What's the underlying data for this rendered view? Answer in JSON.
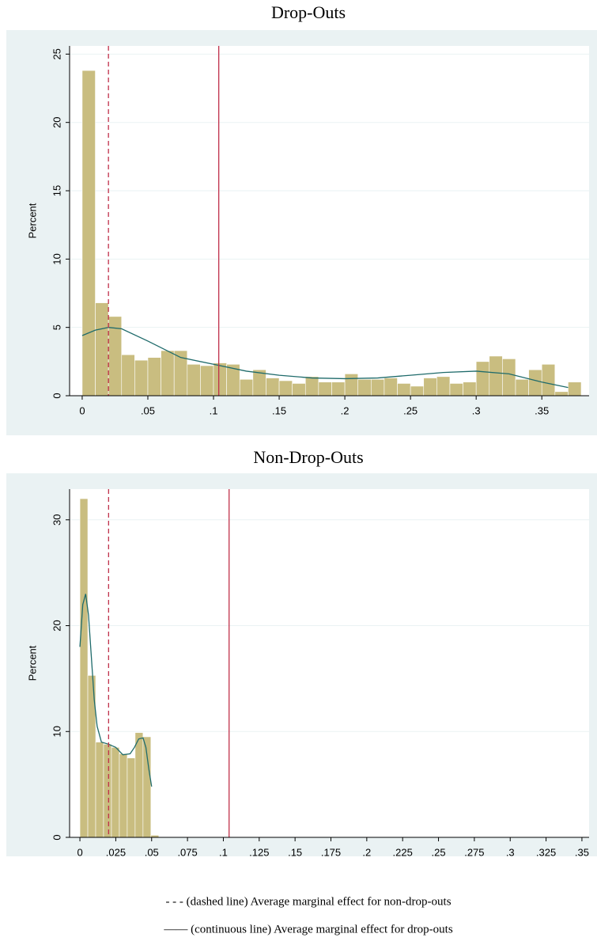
{
  "chart_data": [
    {
      "type": "histogram",
      "title": "Drop-Outs",
      "y_label": "Percent",
      "color": "#c9bd80",
      "grid": true,
      "bins": [
        0,
        0.01,
        0.02,
        0.03,
        0.04,
        0.05,
        0.06,
        0.07,
        0.08,
        0.09,
        0.1,
        0.11,
        0.12,
        0.13,
        0.14,
        0.15,
        0.16,
        0.17,
        0.18,
        0.19,
        0.2,
        0.21,
        0.22,
        0.23,
        0.24,
        0.25,
        0.26,
        0.27,
        0.28,
        0.29,
        0.3,
        0.31,
        0.32,
        0.33,
        0.34,
        0.35,
        0.36,
        0.37,
        0.38
      ],
      "values": [
        23.8,
        6.8,
        5.8,
        3.0,
        2.6,
        2.8,
        3.3,
        3.3,
        2.3,
        2.2,
        2.4,
        2.3,
        1.2,
        1.9,
        1.3,
        1.1,
        0.9,
        1.4,
        1.0,
        1.0,
        1.6,
        1.2,
        1.2,
        1.3,
        0.9,
        0.7,
        1.3,
        1.4,
        0.9,
        1.0,
        2.5,
        2.9,
        2.7,
        1.2,
        1.9,
        2.3,
        0.3,
        1.0
      ],
      "density": {
        "color": "#1f6b6b",
        "x": [
          0,
          0.01,
          0.02,
          0.03,
          0.05,
          0.075,
          0.1,
          0.125,
          0.15,
          0.175,
          0.2,
          0.225,
          0.25,
          0.275,
          0.3,
          0.325,
          0.35,
          0.37
        ],
        "y": [
          4.4,
          4.8,
          5.0,
          4.9,
          4.0,
          2.8,
          2.3,
          1.8,
          1.5,
          1.3,
          1.25,
          1.3,
          1.5,
          1.7,
          1.8,
          1.6,
          1.0,
          0.6
        ]
      },
      "vlines": [
        {
          "x": 0.02,
          "style": "dashed",
          "color": "#c0304a"
        },
        {
          "x": 0.104,
          "style": "solid",
          "color": "#c0304a"
        }
      ],
      "xlim": [
        -0.0096,
        0.386
      ],
      "ylim": [
        0,
        25.6
      ],
      "xticks": [
        0,
        {
          "value": 0.05,
          "label": ".05"
        },
        {
          "value": 0.1,
          "label": ".1"
        },
        {
          "value": 0.15,
          "label": ".15"
        },
        {
          "value": 0.2,
          "label": ".2"
        },
        {
          "value": 0.25,
          "label": ".25"
        },
        {
          "value": 0.3,
          "label": ".3"
        },
        {
          "value": 0.35,
          "label": ".35"
        }
      ],
      "yticks": [
        0,
        5,
        10,
        15,
        20,
        25
      ]
    },
    {
      "type": "histogram",
      "title": "Non-Drop-Outs",
      "y_label": "Percent",
      "color": "#c9bd80",
      "grid": true,
      "bins": [
        0,
        0.0055,
        0.011,
        0.0165,
        0.022,
        0.0275,
        0.033,
        0.0385,
        0.044,
        0.0495,
        0.055
      ],
      "values": [
        32.0,
        15.3,
        9.0,
        8.8,
        8.5,
        7.9,
        7.5,
        9.9,
        9.5,
        0.2
      ],
      "density": {
        "color": "#1f6b6b",
        "x": [
          0,
          0.002,
          0.004,
          0.006,
          0.008,
          0.01,
          0.012,
          0.015,
          0.02,
          0.025,
          0.03,
          0.035,
          0.038,
          0.041,
          0.044,
          0.046,
          0.048,
          0.05
        ],
        "y": [
          18,
          22,
          23,
          21,
          17,
          13,
          10.5,
          9,
          8.8,
          8.5,
          7.8,
          7.9,
          8.5,
          9.3,
          9.4,
          8.5,
          6.5,
          4.8
        ]
      },
      "vlines": [
        {
          "x": 0.02,
          "style": "dashed",
          "color": "#c0304a"
        },
        {
          "x": 0.104,
          "style": "solid",
          "color": "#c0304a"
        }
      ],
      "xlim": [
        -0.0072,
        0.355
      ],
      "ylim": [
        0,
        32.9
      ],
      "xticks": [
        0,
        {
          "value": 0.025,
          "label": ".025"
        },
        {
          "value": 0.05,
          "label": ".05"
        },
        {
          "value": 0.075,
          "label": ".075"
        },
        {
          "value": 0.1,
          "label": ".1"
        },
        {
          "value": 0.125,
          "label": ".125"
        },
        {
          "value": 0.15,
          "label": ".15"
        },
        {
          "value": 0.175,
          "label": ".175"
        },
        {
          "value": 0.2,
          "label": ".2"
        },
        {
          "value": 0.225,
          "label": ".225"
        },
        {
          "value": 0.25,
          "label": ".25"
        },
        {
          "value": 0.275,
          "label": ".275"
        },
        {
          "value": 0.3,
          "label": ".3"
        },
        {
          "value": 0.325,
          "label": ".325"
        },
        {
          "value": 0.35,
          "label": ".35"
        }
      ],
      "yticks": [
        0,
        10,
        20,
        30
      ]
    }
  ],
  "notes": [
    "- - - (dashed line) Average marginal effect for non-drop-outs",
    "—— (continuous line) Average marginal effect for drop-outs"
  ]
}
